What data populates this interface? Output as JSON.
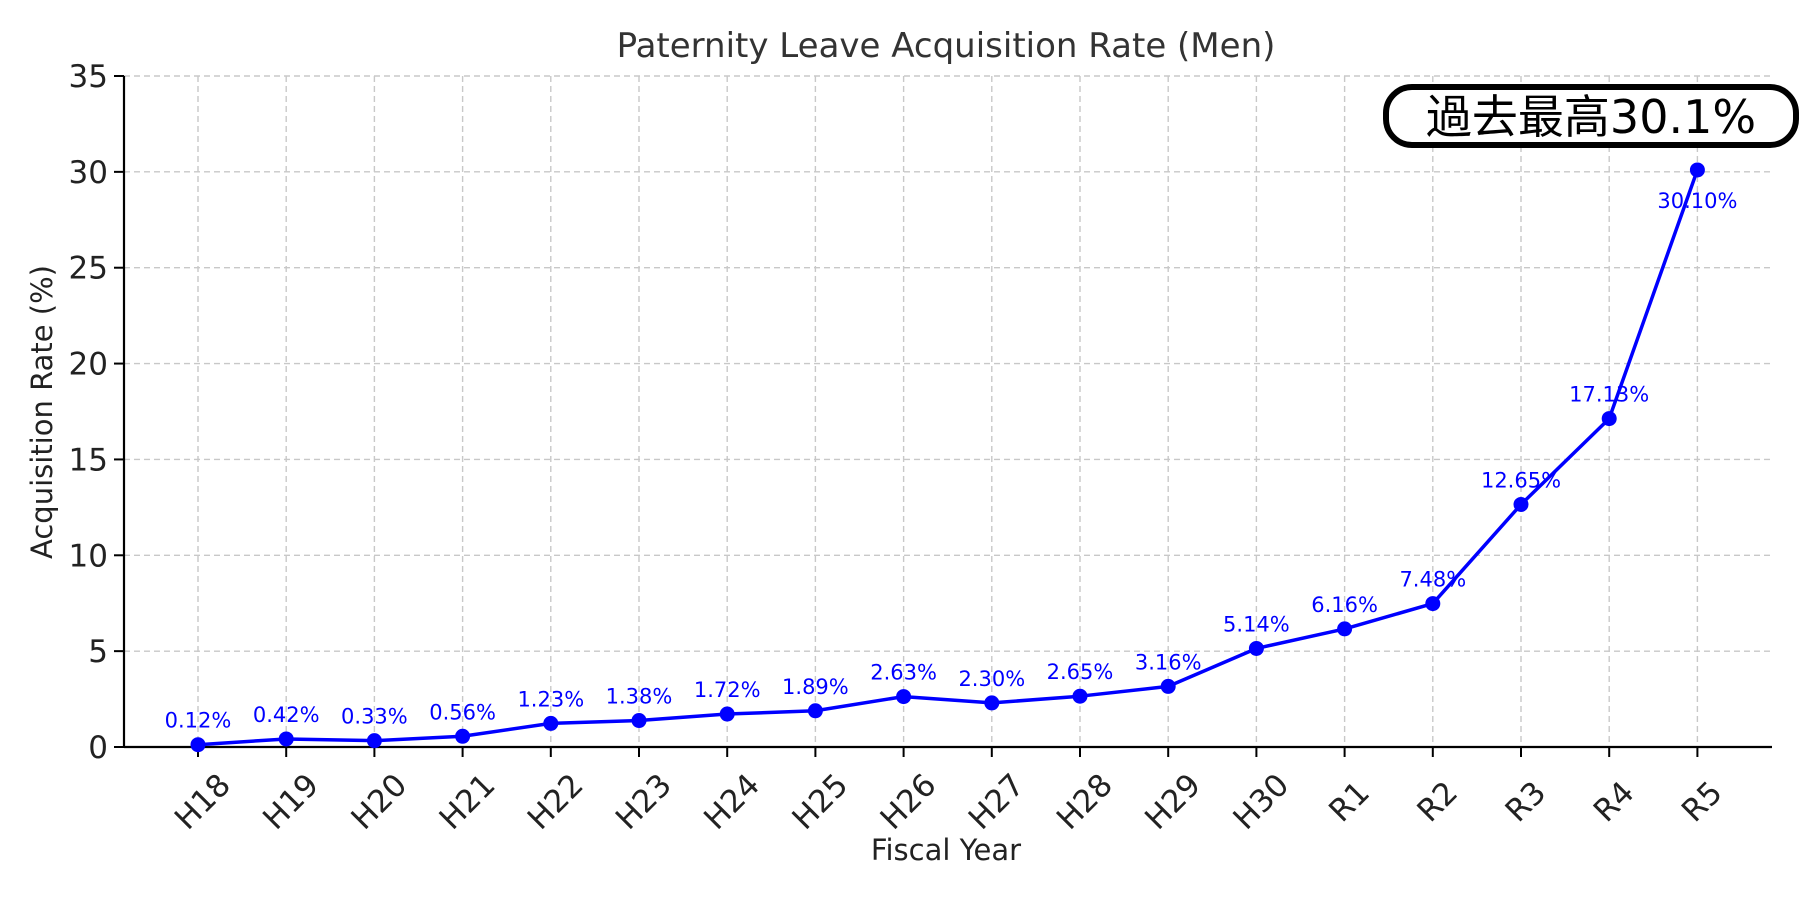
{
  "chart_data": {
    "type": "line",
    "title": "Paternity Leave Acquisition Rate (Men)",
    "xlabel": "Fiscal Year",
    "ylabel": "Acquisition Rate (%)",
    "ylim": [
      0,
      35
    ],
    "yticks": [
      0,
      5,
      10,
      15,
      20,
      25,
      30,
      35
    ],
    "grid": true,
    "categories": [
      "H18",
      "H19",
      "H20",
      "H21",
      "H22",
      "H23",
      "H24",
      "H25",
      "H26",
      "H27",
      "H28",
      "H29",
      "H30",
      "R1",
      "R2",
      "R3",
      "R4",
      "R5"
    ],
    "series": [
      {
        "color": "#0000ff",
        "marker": "circle",
        "values": [
          0.12,
          0.42,
          0.33,
          0.56,
          1.23,
          1.38,
          1.72,
          1.89,
          2.63,
          2.3,
          2.65,
          3.16,
          5.14,
          6.16,
          7.48,
          12.65,
          17.13,
          30.1
        ],
        "labels": [
          "0.12%",
          "0.42%",
          "0.33%",
          "0.56%",
          "1.23%",
          "1.38%",
          "1.72%",
          "1.89%",
          "2.63%",
          "2.30%",
          "2.65%",
          "3.16%",
          "5.14%",
          "6.16%",
          "7.48%",
          "12.65%",
          "17.13%",
          "30.10%"
        ]
      }
    ],
    "annotation": {
      "text": "過去最高30.1%",
      "placement": "top-right"
    }
  }
}
